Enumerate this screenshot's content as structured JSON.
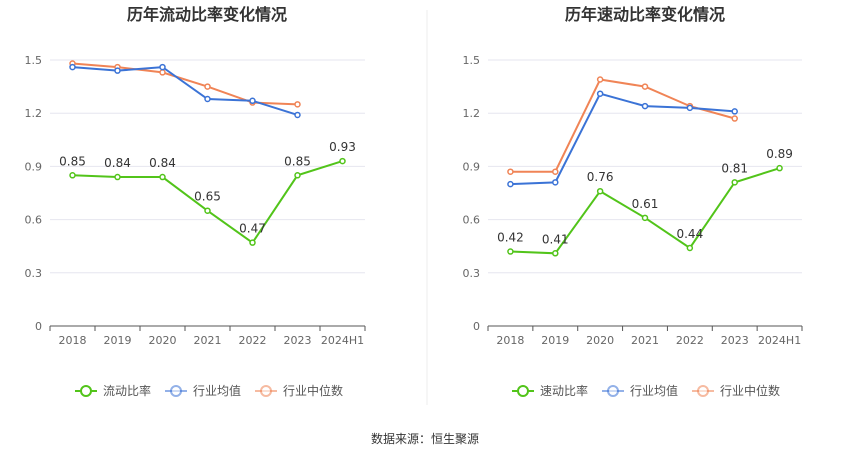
{
  "source_text": "数据来源：恒生聚源",
  "colors": {
    "company": "#52c41a",
    "avg": "#3b73d6",
    "median": "#f08456",
    "grid": "#e6e6ef",
    "axis": "#555555"
  },
  "chart_data": [
    {
      "type": "line",
      "title": "历年流动比率变化情况",
      "categories": [
        "2018",
        "2019",
        "2020",
        "2021",
        "2022",
        "2023",
        "2024H1"
      ],
      "ylim": [
        0,
        1.5
      ],
      "yticks": [
        0,
        0.3,
        0.6,
        0.9,
        1.2,
        1.5
      ],
      "ytick_labels": [
        "0",
        "0.3",
        "0.6",
        "0.9",
        "1.2",
        "1.5"
      ],
      "series": [
        {
          "name": "流动比率",
          "key": "company",
          "values": [
            0.85,
            0.84,
            0.84,
            0.65,
            0.47,
            0.85,
            0.93
          ],
          "labels": [
            "0.85",
            "0.84",
            "0.84",
            "0.65",
            "0.47",
            "0.85",
            "0.93"
          ]
        },
        {
          "name": "行业均值",
          "key": "avg",
          "values": [
            1.46,
            1.44,
            1.46,
            1.28,
            1.27,
            1.19,
            null
          ]
        },
        {
          "name": "行业中位数",
          "key": "median",
          "values": [
            1.48,
            1.46,
            1.43,
            1.35,
            1.26,
            1.25,
            null
          ]
        }
      ]
    },
    {
      "type": "line",
      "title": "历年速动比率变化情况",
      "categories": [
        "2018",
        "2019",
        "2020",
        "2021",
        "2022",
        "2023",
        "2024H1"
      ],
      "ylim": [
        0,
        1.5
      ],
      "yticks": [
        0,
        0.3,
        0.6,
        0.9,
        1.2,
        1.5
      ],
      "ytick_labels": [
        "0",
        "0.3",
        "0.6",
        "0.9",
        "1.2",
        "1.5"
      ],
      "series": [
        {
          "name": "速动比率",
          "key": "company",
          "values": [
            0.42,
            0.41,
            0.76,
            0.61,
            0.44,
            0.81,
            0.89
          ],
          "labels": [
            "0.42",
            "0.41",
            "0.76",
            "0.61",
            "0.44",
            "0.81",
            "0.89"
          ]
        },
        {
          "name": "行业均值",
          "key": "avg",
          "values": [
            0.8,
            0.81,
            1.31,
            1.24,
            1.23,
            1.21,
            null
          ]
        },
        {
          "name": "行业中位数",
          "key": "median",
          "values": [
            0.87,
            0.87,
            1.39,
            1.35,
            1.24,
            1.17,
            null
          ]
        }
      ]
    }
  ]
}
